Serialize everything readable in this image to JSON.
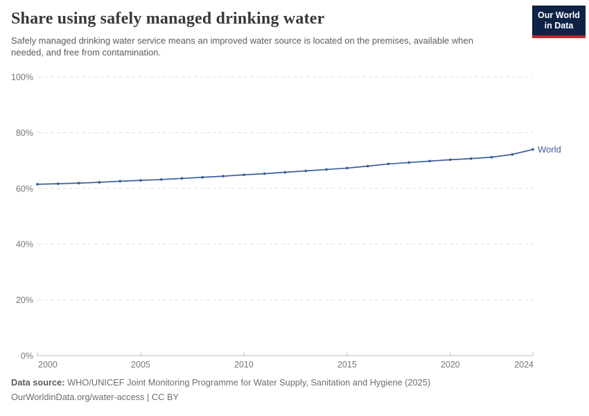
{
  "header": {
    "title": "Share using safely managed drinking water",
    "subtitle": "Safely managed drinking water service means an improved water source is located on the premises, available when needed, and free from contamination."
  },
  "logo": {
    "line1": "Our World",
    "line2": "in Data",
    "bg_color": "#0e2246",
    "accent_color": "#c1272d"
  },
  "chart_data": {
    "type": "line",
    "title": "Share using safely managed drinking water",
    "x": [
      2000,
      2001,
      2002,
      2003,
      2004,
      2005,
      2006,
      2007,
      2008,
      2009,
      2010,
      2011,
      2012,
      2013,
      2014,
      2015,
      2016,
      2017,
      2018,
      2019,
      2020,
      2021,
      2022,
      2023,
      2024
    ],
    "series": [
      {
        "name": "World",
        "color": "#3d5e99",
        "values": [
          61.5,
          61.7,
          61.9,
          62.2,
          62.6,
          62.9,
          63.2,
          63.6,
          64.0,
          64.4,
          64.9,
          65.3,
          65.8,
          66.3,
          66.8,
          67.3,
          68.0,
          68.8,
          69.3,
          69.8,
          70.3,
          70.7,
          71.2,
          72.2,
          74.0
        ]
      }
    ],
    "xlabel": "",
    "ylabel": "",
    "ylim": [
      0,
      100
    ],
    "yticks": [
      0,
      20,
      40,
      60,
      80,
      100
    ],
    "ytick_suffix": "%",
    "xticks": [
      2000,
      2005,
      2010,
      2015,
      2020,
      2024
    ],
    "grid": true,
    "grid_style": "dashed",
    "legend_position": "end-of-line"
  },
  "footer": {
    "source_label": "Data source:",
    "source_text": " WHO/UNICEF Joint Monitoring Programme for Water Supply, Sanitation and Hygiene (2025)",
    "link_text": "OurWorldinData.org/water-access | CC BY"
  },
  "colors": {
    "title": "#383838",
    "subtitle": "#5b5b5b",
    "tick_label": "#757575",
    "gridline": "#dddddd",
    "axis_line": "#bbbbbb",
    "series_blue": "#3d5e99"
  }
}
